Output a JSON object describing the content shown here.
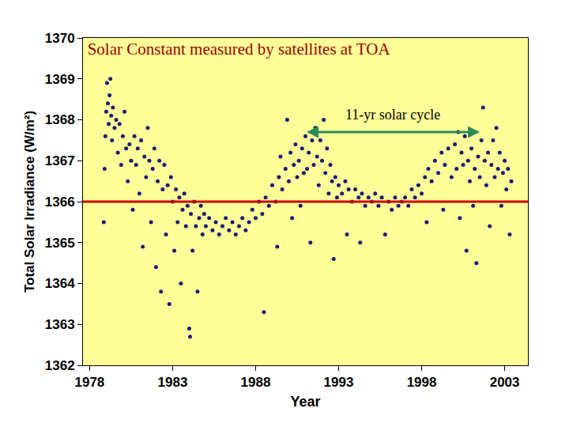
{
  "chart_data": {
    "type": "scatter",
    "title": "Solar Constant measured by satellites at TOA",
    "x_label": "Year",
    "y_label": "Total Solar Irradiance (W/m²)",
    "color": "#1a1a7a",
    "marker": "circle",
    "grid": false,
    "xlim": [
      1977.6,
      2004.4
    ],
    "xticks": [
      1978,
      1983,
      1988,
      1993,
      1998,
      2003
    ],
    "ylim": [
      1362,
      1370
    ],
    "yticks": [
      1362,
      1363,
      1364,
      1365,
      1366,
      1367,
      1368,
      1369,
      1370
    ],
    "reference_line": {
      "y": 1366,
      "color": "#cc0000"
    },
    "annotations": [
      {
        "text": "11-yr solar cycle",
        "x": [
          1991,
          2001.5
        ],
        "y": 1367.7,
        "color": "#2e8b57"
      }
    ],
    "x": [
      1978.85,
      1978.9,
      1978.95,
      1979.0,
      1979.05,
      1979.1,
      1979.15,
      1979.2,
      1979.25,
      1979.3,
      1979.35,
      1979.4,
      1979.5,
      1979.6,
      1979.7,
      1979.8,
      1979.9,
      1980.0,
      1980.1,
      1980.2,
      1980.3,
      1980.4,
      1980.5,
      1980.6,
      1980.7,
      1980.8,
      1980.9,
      1981.0,
      1981.1,
      1981.2,
      1981.3,
      1981.4,
      1981.5,
      1981.6,
      1981.7,
      1981.8,
      1981.9,
      1982.0,
      1982.1,
      1982.2,
      1982.3,
      1982.4,
      1982.5,
      1982.6,
      1982.7,
      1982.8,
      1982.9,
      1983.0,
      1983.1,
      1983.2,
      1983.3,
      1983.4,
      1983.5,
      1983.6,
      1983.7,
      1983.8,
      1983.9,
      1984.0,
      1984.05,
      1984.1,
      1984.2,
      1984.3,
      1984.4,
      1984.5,
      1984.6,
      1984.7,
      1984.8,
      1984.9,
      1985.0,
      1985.2,
      1985.4,
      1985.6,
      1985.8,
      1986.0,
      1986.2,
      1986.4,
      1986.6,
      1986.8,
      1987.0,
      1987.2,
      1987.4,
      1987.6,
      1987.8,
      1988.0,
      1988.2,
      1988.4,
      1988.5,
      1988.6,
      1988.8,
      1989.0,
      1989.2,
      1989.3,
      1989.4,
      1989.5,
      1989.6,
      1989.8,
      1989.9,
      1990.0,
      1990.1,
      1990.2,
      1990.3,
      1990.4,
      1990.5,
      1990.6,
      1990.7,
      1990.8,
      1990.9,
      1991.0,
      1991.1,
      1991.2,
      1991.3,
      1991.4,
      1991.5,
      1991.6,
      1991.7,
      1991.8,
      1991.9,
      1992.0,
      1992.1,
      1992.2,
      1992.3,
      1992.4,
      1992.5,
      1992.6,
      1992.7,
      1992.8,
      1992.9,
      1993.0,
      1993.2,
      1993.4,
      1993.5,
      1993.6,
      1993.8,
      1994.0,
      1994.2,
      1994.3,
      1994.4,
      1994.6,
      1994.8,
      1995.0,
      1995.2,
      1995.4,
      1995.6,
      1995.8,
      1996.0,
      1996.2,
      1996.4,
      1996.6,
      1996.8,
      1997.0,
      1997.2,
      1997.4,
      1997.6,
      1997.8,
      1998.0,
      1998.2,
      1998.3,
      1998.4,
      1998.6,
      1998.8,
      1999.0,
      1999.2,
      1999.3,
      1999.4,
      1999.6,
      1999.8,
      2000.0,
      2000.1,
      2000.2,
      2000.3,
      2000.4,
      2000.5,
      2000.6,
      2000.7,
      2000.8,
      2000.9,
      2001.0,
      2001.1,
      2001.2,
      2001.3,
      2001.4,
      2001.5,
      2001.6,
      2001.7,
      2001.8,
      2001.9,
      2002.0,
      2002.1,
      2002.2,
      2002.3,
      2002.4,
      2002.5,
      2002.6,
      2002.7,
      2002.8,
      2002.9,
      2003.0,
      2003.1,
      2003.2,
      2003.3,
      2003.4
    ],
    "values": [
      1365.5,
      1366.8,
      1367.6,
      1368.2,
      1368.9,
      1368.4,
      1367.9,
      1368.6,
      1369.0,
      1368.1,
      1367.5,
      1368.3,
      1367.8,
      1368.0,
      1367.2,
      1367.9,
      1366.9,
      1367.6,
      1368.2,
      1367.3,
      1366.5,
      1367.4,
      1367.0,
      1365.8,
      1367.6,
      1366.9,
      1367.3,
      1366.2,
      1367.5,
      1364.9,
      1367.1,
      1366.6,
      1367.8,
      1367.0,
      1365.5,
      1366.8,
      1367.3,
      1364.4,
      1366.5,
      1367.0,
      1363.8,
      1366.3,
      1366.9,
      1365.2,
      1366.4,
      1363.5,
      1366.6,
      1366.0,
      1364.8,
      1366.3,
      1365.5,
      1366.1,
      1364.0,
      1365.8,
      1366.2,
      1365.4,
      1365.9,
      1362.9,
      1362.7,
      1365.7,
      1364.8,
      1366.0,
      1365.4,
      1363.8,
      1365.6,
      1365.9,
      1365.2,
      1365.7,
      1365.4,
      1365.6,
      1365.3,
      1365.5,
      1365.2,
      1365.4,
      1365.6,
      1365.3,
      1365.5,
      1365.2,
      1365.4,
      1365.6,
      1365.3,
      1365.5,
      1365.8,
      1365.6,
      1366.0,
      1365.7,
      1363.3,
      1366.1,
      1365.9,
      1366.4,
      1366.0,
      1364.9,
      1366.6,
      1367.1,
      1366.3,
      1366.8,
      1368.0,
      1366.5,
      1367.2,
      1365.6,
      1366.9,
      1367.4,
      1366.6,
      1367.0,
      1365.9,
      1367.3,
      1366.7,
      1367.6,
      1366.8,
      1367.2,
      1365.0,
      1367.5,
      1366.9,
      1367.8,
      1367.1,
      1366.4,
      1367.5,
      1367.0,
      1368.0,
      1366.7,
      1367.3,
      1366.2,
      1366.9,
      1366.5,
      1364.6,
      1366.6,
      1366.1,
      1366.4,
      1366.2,
      1366.5,
      1365.2,
      1366.3,
      1366.0,
      1366.3,
      1366.1,
      1365.0,
      1366.2,
      1365.9,
      1366.1,
      1366.0,
      1366.2,
      1365.9,
      1366.1,
      1365.2,
      1366.0,
      1365.8,
      1366.1,
      1365.9,
      1366.0,
      1366.1,
      1365.9,
      1366.3,
      1366.1,
      1366.4,
      1366.2,
      1366.6,
      1365.5,
      1366.8,
      1366.5,
      1367.0,
      1366.7,
      1367.2,
      1365.8,
      1366.9,
      1367.3,
      1366.6,
      1367.4,
      1366.8,
      1367.7,
      1365.6,
      1367.2,
      1366.9,
      1367.6,
      1364.8,
      1367.0,
      1366.5,
      1367.3,
      1365.9,
      1366.8,
      1364.5,
      1367.1,
      1366.6,
      1367.5,
      1368.3,
      1367.0,
      1366.4,
      1367.2,
      1365.4,
      1366.9,
      1367.5,
      1366.6,
      1367.8,
      1366.8,
      1367.2,
      1365.9,
      1366.7,
      1367.0,
      1366.3,
      1366.8,
      1365.2,
      1366.5
    ]
  }
}
